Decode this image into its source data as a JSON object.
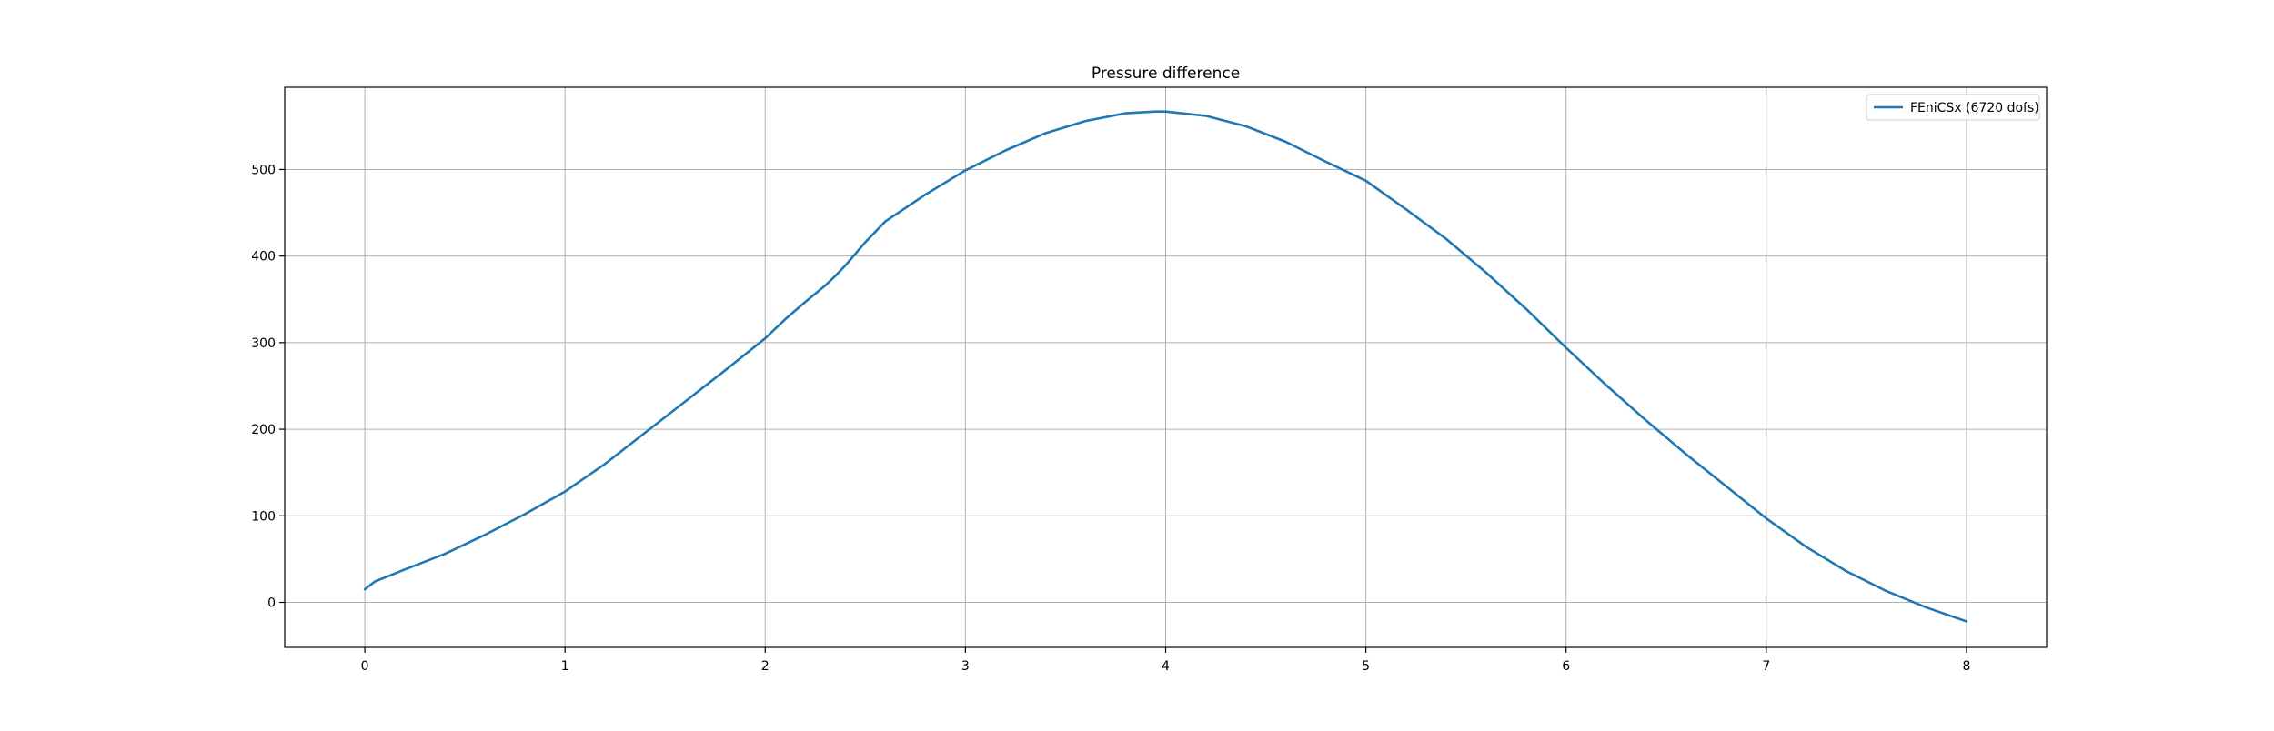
{
  "chart_data": {
    "type": "line",
    "title": "Pressure difference",
    "xlabel": "",
    "ylabel": "",
    "xlim": [
      -0.4,
      8.4
    ],
    "ylim": [
      -52,
      595
    ],
    "x_ticks": [
      0,
      1,
      2,
      3,
      4,
      5,
      6,
      7,
      8
    ],
    "y_ticks": [
      0,
      100,
      200,
      300,
      400,
      500
    ],
    "grid": true,
    "legend_placement": "top-right",
    "series": [
      {
        "name": "FEniCSx (6720 dofs)",
        "color": "#1f77b4",
        "x": [
          0,
          0.05,
          0.2,
          0.4,
          0.6,
          0.8,
          1.0,
          1.2,
          1.4,
          1.6,
          1.8,
          2.0,
          2.1,
          2.2,
          2.3,
          2.35,
          2.4,
          2.5,
          2.6,
          2.8,
          3.0,
          3.2,
          3.4,
          3.6,
          3.8,
          3.95,
          4.0,
          4.2,
          4.4,
          4.6,
          4.8,
          5.0,
          5.2,
          5.4,
          5.6,
          5.8,
          6.0,
          6.2,
          6.4,
          6.6,
          6.8,
          7.0,
          7.2,
          7.4,
          7.6,
          7.8,
          8.0
        ],
        "y": [
          15,
          24,
          38,
          56,
          78,
          102,
          128,
          160,
          196,
          232,
          268,
          305,
          327,
          347,
          366,
          377,
          389,
          416,
          440,
          471,
          499,
          522,
          542,
          556,
          565,
          567,
          567,
          562,
          550,
          532,
          509,
          487,
          454,
          420,
          381,
          339,
          294,
          251,
          210,
          171,
          134,
          97,
          64,
          36,
          13,
          -6,
          -22
        ]
      }
    ]
  }
}
